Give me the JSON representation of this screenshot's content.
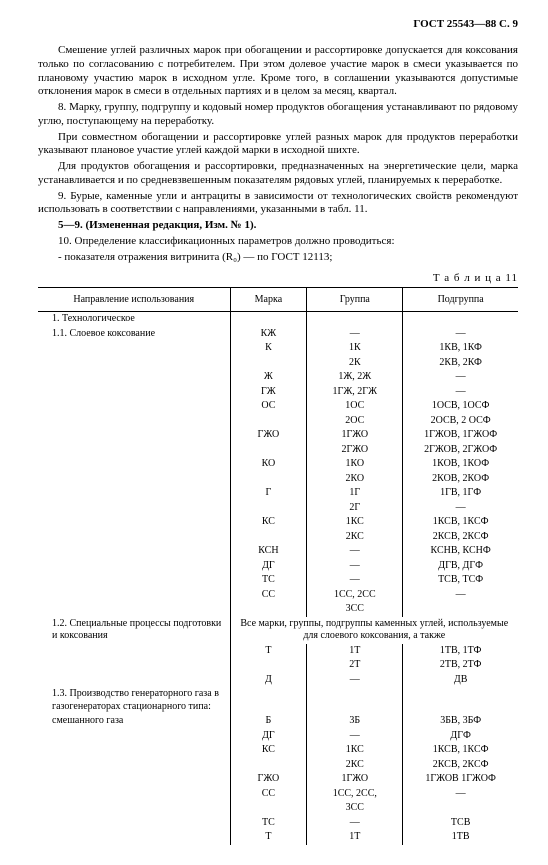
{
  "header": "ГОСТ 25543—88 С. 9",
  "paragraphs": [
    "Смешение углей различных марок при обогащении и рассортировке допускается для коксования только по согласованию с потребителем. При этом долевое участие марок в смеси указывается по плановому участию марок в исходном угле. Кроме того, в соглашении указываются допустимые отклонения марок в смеси в отдельных партиях и в целом за месяц, квартал.",
    "8. Марку, группу, подгруппу и кодовый номер продуктов обогащения устанавливают по рядовому углю, поступающему на переработку.",
    "При совместном обогащении и рассортировке углей разных марок для продуктов переработки указывают плановое участие углей каждой марки в исходной шихте.",
    "Для продуктов обогащения и рассортировки, предназначенных на энергетические цели, марка устанавливается и по средневзвешенным показателям рядовых углей, планируемых к переработке.",
    "9. Бурые, каменные угли и антрациты в зависимости от технологических свойств рекомендуют использовать в соответствии с направлениями, указанными в табл. 11.",
    "5—9. (Измененная редакция, Изм. № 1).",
    "10. Определение классификационных параметров должно проводиться:",
    "- показателя отражения витринита (R₀) — по ГОСТ 12113;"
  ],
  "tableCaption": "Т а б л и ц а   11",
  "columns": [
    "Направление использования",
    "Марка",
    "Группа",
    "Подгруппа"
  ],
  "section1": {
    "title": "1. Технологическое",
    "sub1": {
      "title": "1.1. Слоевое коксование",
      "rows": [
        [
          "КЖ",
          "—",
          "—"
        ],
        [
          "К",
          "1К",
          "1КВ, 1КФ"
        ],
        [
          "",
          "2К",
          "2КВ, 2КФ"
        ],
        [
          "Ж",
          "1Ж, 2Ж",
          "—"
        ],
        [
          "ГЖ",
          "1ГЖ, 2ГЖ",
          "—"
        ],
        [
          "ОС",
          "1ОС",
          "1ОСВ, 1ОСФ"
        ],
        [
          "",
          "2ОС",
          "2ОСВ, 2 ОСФ"
        ],
        [
          "ГЖО",
          "1ГЖО",
          "1ГЖОВ, 1ГЖОФ"
        ],
        [
          "",
          "2ГЖО",
          "2ГЖОВ, 2ГЖОФ"
        ],
        [
          "КО",
          "1КО",
          "1КОВ, 1КОФ"
        ],
        [
          "",
          "2КО",
          "2КОВ, 2КОФ"
        ],
        [
          "Г",
          "1Г",
          "1ГВ, 1ГФ"
        ],
        [
          "",
          "2Г",
          "—"
        ],
        [
          "КС",
          "1КС",
          "1КСВ, 1КСФ"
        ],
        [
          "",
          "2КС",
          "2КСВ, 2КСФ"
        ],
        [
          "КСН",
          "—",
          "КСНВ, КСНФ"
        ],
        [
          "ДГ",
          "—",
          "ДГВ, ДГФ"
        ],
        [
          "ТС",
          "—",
          "ТСВ, ТСФ"
        ],
        [
          "СС",
          "1СС, 2СС",
          "—"
        ],
        [
          "",
          "3СС",
          ""
        ]
      ]
    },
    "sub2": {
      "title": "1.2. Специальные процессы подготовки и коксования",
      "note": "Все марки, группы, подгруппы каменных углей, используемые для слоевого коксования, а также",
      "rows": [
        [
          "Т",
          "1Т",
          "1ТВ, 1ТФ"
        ],
        [
          "",
          "2Т",
          "2ТВ, 2ТФ"
        ],
        [
          "Д",
          "—",
          "ДВ"
        ]
      ]
    },
    "sub3": {
      "title": "1.3. Производство генераторного газа в газогенераторах стационарного типа:",
      "subTitle": "смешанного газа",
      "rows": [
        [
          "Б",
          "3Б",
          "3БВ, 3БФ"
        ],
        [
          "ДГ",
          "—",
          "ДГФ"
        ],
        [
          "КС",
          "1КС",
          "1КСВ, 1КСФ"
        ],
        [
          "",
          "2КС",
          "2КСВ, 2КСФ"
        ],
        [
          "ГЖО",
          "1ГЖО",
          "1ГЖОВ 1ГЖОФ"
        ],
        [
          "СС",
          "1СС, 2СС,",
          "—"
        ],
        [
          "",
          "3СС",
          ""
        ],
        [
          "ТС",
          "—",
          "ТСВ"
        ],
        [
          "Т",
          "1Т",
          "1ТВ"
        ]
      ]
    }
  }
}
